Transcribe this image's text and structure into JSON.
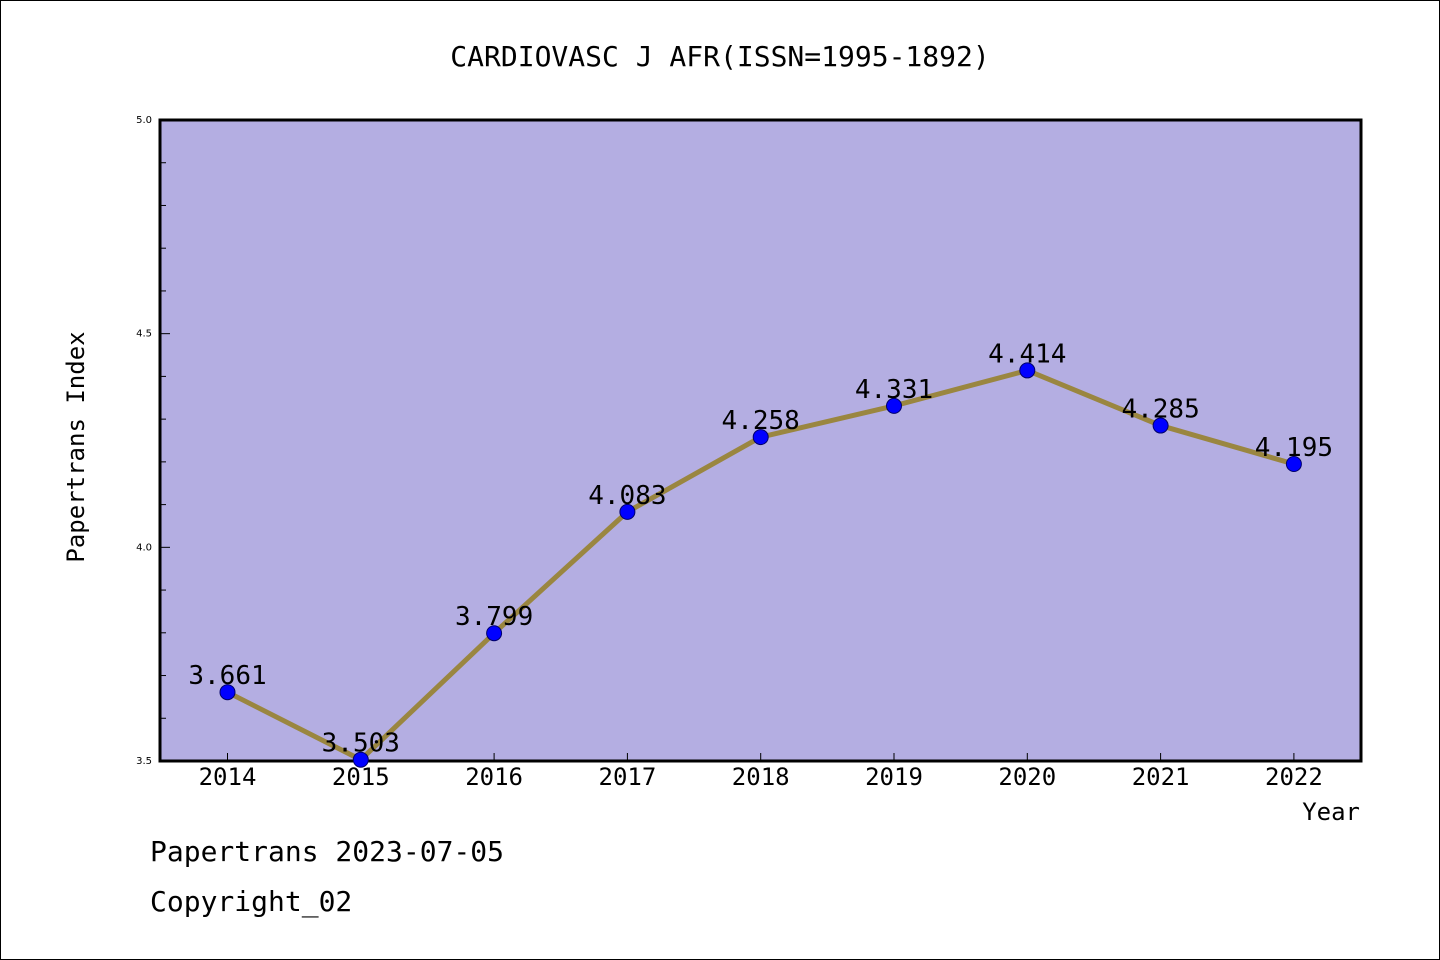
{
  "chart_data": {
    "type": "line",
    "title": "CARDIOVASC J AFR(ISSN=1995-1892)",
    "xlabel": "Year",
    "ylabel": "Papertrans Index",
    "categories": [
      "2014",
      "2015",
      "2016",
      "2017",
      "2018",
      "2019",
      "2020",
      "2021",
      "2022"
    ],
    "values": [
      3.661,
      3.503,
      3.799,
      4.083,
      4.258,
      4.331,
      4.414,
      4.285,
      4.195
    ],
    "data_labels": [
      "3.661",
      "3.503",
      "3.799",
      "4.083",
      "4.258",
      "4.331",
      "4.414",
      "4.285",
      "4.195"
    ],
    "ylim": [
      3.5,
      5.0
    ],
    "yticks": [
      "3.5",
      "4.0",
      "4.5",
      "5.0"
    ],
    "grid": false,
    "colors": {
      "plot_background": "#b4aee2",
      "line": "#9a8640",
      "marker": "#0000ff"
    }
  },
  "footer": {
    "line1": "Papertrans 2023-07-05",
    "line2": "Copyright_02"
  }
}
